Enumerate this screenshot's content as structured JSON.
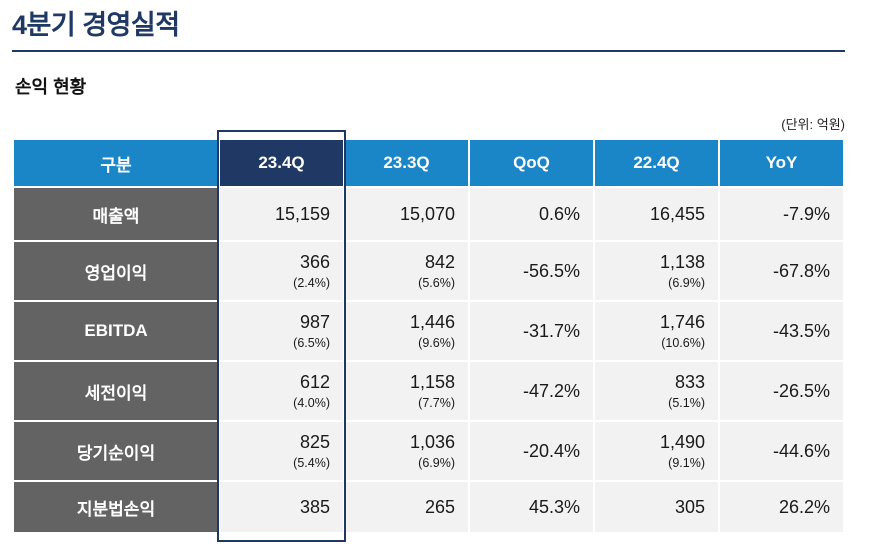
{
  "page": {
    "title": "4분기 경영실적",
    "section_title": "손익 현황",
    "unit_label": "(단위: 억원)"
  },
  "colors": {
    "title_navy": "#1F3864",
    "header_blue": "#1A86C8",
    "highlight_column_border": "#1F3864",
    "row_label_gray": "#636363",
    "data_cell_bg": "#F2F2F2"
  },
  "table": {
    "columns": [
      "구분",
      "23.4Q",
      "23.3Q",
      "QoQ",
      "22.4Q",
      "YoY"
    ],
    "highlighted_column": "23.4Q",
    "rows": [
      {
        "label": "매출액",
        "cells": [
          {
            "main": "15,159"
          },
          {
            "main": "15,070"
          },
          {
            "main": "0.6%"
          },
          {
            "main": "16,455"
          },
          {
            "main": "-7.9%"
          }
        ]
      },
      {
        "label": "영업이익",
        "cells": [
          {
            "main": "366",
            "sub": "(2.4%)"
          },
          {
            "main": "842",
            "sub": "(5.6%)"
          },
          {
            "main": "-56.5%"
          },
          {
            "main": "1,138",
            "sub": "(6.9%)"
          },
          {
            "main": "-67.8%"
          }
        ]
      },
      {
        "label": "EBITDA",
        "cells": [
          {
            "main": "987",
            "sub": "(6.5%)"
          },
          {
            "main": "1,446",
            "sub": "(9.6%)"
          },
          {
            "main": "-31.7%"
          },
          {
            "main": "1,746",
            "sub": "(10.6%)"
          },
          {
            "main": "-43.5%"
          }
        ]
      },
      {
        "label": "세전이익",
        "cells": [
          {
            "main": "612",
            "sub": "(4.0%)"
          },
          {
            "main": "1,158",
            "sub": "(7.7%)"
          },
          {
            "main": "-47.2%"
          },
          {
            "main": "833",
            "sub": "(5.1%)"
          },
          {
            "main": "-26.5%"
          }
        ]
      },
      {
        "label": "당기순이익",
        "cells": [
          {
            "main": "825",
            "sub": "(5.4%)"
          },
          {
            "main": "1,036",
            "sub": "(6.9%)"
          },
          {
            "main": "-20.4%"
          },
          {
            "main": "1,490",
            "sub": "(9.1%)"
          },
          {
            "main": "-44.6%"
          }
        ]
      },
      {
        "label": "지분법손익",
        "cells": [
          {
            "main": "385"
          },
          {
            "main": "265"
          },
          {
            "main": "45.3%"
          },
          {
            "main": "305"
          },
          {
            "main": "26.2%"
          }
        ]
      }
    ]
  }
}
